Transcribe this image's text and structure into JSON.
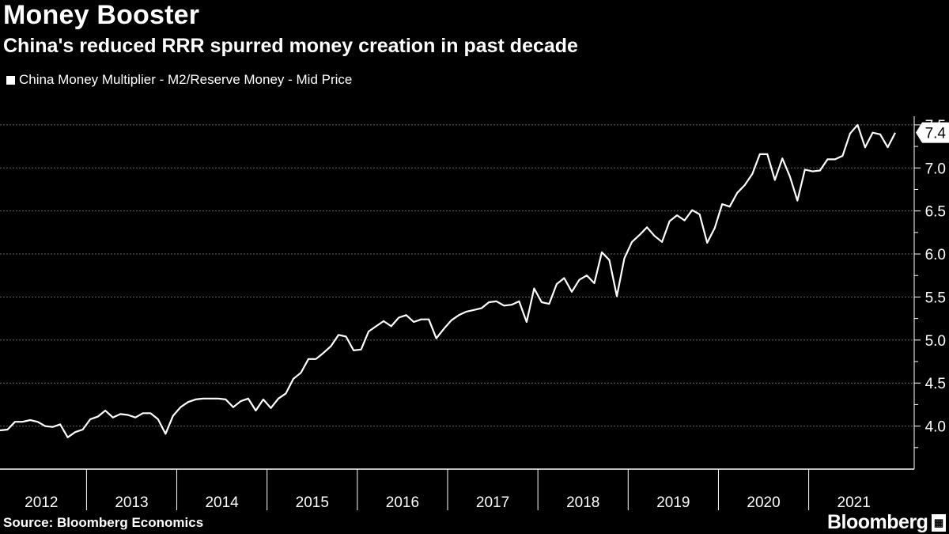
{
  "header": {
    "title": "Money Booster",
    "subtitle": "China's reduced RRR spurred money creation in past decade"
  },
  "footer": {
    "source": "Source: Bloomberg Economics",
    "brand": "Bloomberg"
  },
  "colors": {
    "background": "#000000",
    "line": "#ffffff",
    "grid": "#666666"
  },
  "chart_data": {
    "type": "line",
    "legend": "China Money Multiplier - M2/Reserve Money - Mid Price",
    "legend_position": "top-left",
    "grid": true,
    "ylim": [
      3.5,
      7.6
    ],
    "yticks": [
      "4.0",
      "4.5",
      "5.0",
      "5.5",
      "6.0",
      "6.5",
      "7.0",
      "7.5"
    ],
    "xticks": [
      "2012",
      "2013",
      "2014",
      "2015",
      "2016",
      "2017",
      "2018",
      "2019",
      "2020",
      "2021"
    ],
    "last_value_label": "7.4",
    "series": [
      {
        "name": "China Money Multiplier - M2/Reserve Money - Mid Price",
        "x": [
          "2012-01",
          "2012-02",
          "2012-03",
          "2012-04",
          "2012-05",
          "2012-06",
          "2012-07",
          "2012-08",
          "2012-09",
          "2012-10",
          "2012-11",
          "2012-12",
          "2013-01",
          "2013-02",
          "2013-03",
          "2013-04",
          "2013-05",
          "2013-06",
          "2013-07",
          "2013-08",
          "2013-09",
          "2013-10",
          "2013-11",
          "2013-12",
          "2014-01",
          "2014-02",
          "2014-03",
          "2014-04",
          "2014-05",
          "2014-06",
          "2014-07",
          "2014-08",
          "2014-09",
          "2014-10",
          "2014-11",
          "2014-12",
          "2015-01",
          "2015-02",
          "2015-03",
          "2015-04",
          "2015-05",
          "2015-06",
          "2015-07",
          "2015-08",
          "2015-09",
          "2015-10",
          "2015-11",
          "2015-12",
          "2016-01",
          "2016-02",
          "2016-03",
          "2016-04",
          "2016-05",
          "2016-06",
          "2016-07",
          "2016-08",
          "2016-09",
          "2016-10",
          "2016-11",
          "2016-12",
          "2017-01",
          "2017-02",
          "2017-03",
          "2017-04",
          "2017-05",
          "2017-06",
          "2017-07",
          "2017-08",
          "2017-09",
          "2017-10",
          "2017-11",
          "2017-12",
          "2018-01",
          "2018-02",
          "2018-03",
          "2018-04",
          "2018-05",
          "2018-06",
          "2018-07",
          "2018-08",
          "2018-09",
          "2018-10",
          "2018-11",
          "2018-12",
          "2019-01",
          "2019-02",
          "2019-03",
          "2019-04",
          "2019-05",
          "2019-06",
          "2019-07",
          "2019-08",
          "2019-09",
          "2019-10",
          "2019-11",
          "2019-12",
          "2020-01",
          "2020-02",
          "2020-03",
          "2020-04",
          "2020-05",
          "2020-06",
          "2020-07",
          "2020-08",
          "2020-09",
          "2020-10",
          "2020-11",
          "2020-12",
          "2021-01",
          "2021-02",
          "2021-03",
          "2021-04",
          "2021-05",
          "2021-06",
          "2021-07",
          "2021-08",
          "2021-09",
          "2021-10",
          "2021-11",
          "2021-12"
        ],
        "values": [
          3.95,
          3.96,
          4.05,
          4.05,
          4.07,
          4.05,
          4.0,
          3.99,
          4.02,
          3.87,
          3.93,
          3.96,
          4.08,
          4.11,
          4.18,
          4.1,
          4.14,
          4.13,
          4.1,
          4.15,
          4.15,
          4.08,
          3.91,
          4.12,
          4.22,
          4.28,
          4.31,
          4.32,
          4.32,
          4.32,
          4.31,
          4.22,
          4.29,
          4.32,
          4.18,
          4.31,
          4.21,
          4.32,
          4.38,
          4.55,
          4.62,
          4.78,
          4.78,
          4.85,
          4.93,
          5.06,
          5.04,
          4.88,
          4.89,
          5.1,
          5.16,
          5.22,
          5.16,
          5.26,
          5.29,
          5.21,
          5.24,
          5.24,
          5.02,
          5.13,
          5.23,
          5.29,
          5.33,
          5.35,
          5.37,
          5.44,
          5.45,
          5.4,
          5.41,
          5.45,
          5.21,
          5.6,
          5.44,
          5.42,
          5.65,
          5.72,
          5.56,
          5.7,
          5.75,
          5.66,
          6.02,
          5.93,
          5.51,
          5.95,
          6.14,
          6.22,
          6.31,
          6.21,
          6.14,
          6.38,
          6.45,
          6.39,
          6.51,
          6.46,
          6.13,
          6.3,
          6.58,
          6.55,
          6.71,
          6.8,
          6.93,
          7.16,
          7.16,
          6.86,
          7.11,
          6.9,
          6.62,
          6.98,
          6.96,
          6.97,
          7.1,
          7.1,
          7.14,
          7.4,
          7.5,
          7.24,
          7.41,
          7.39,
          7.24,
          7.41
        ]
      }
    ]
  }
}
